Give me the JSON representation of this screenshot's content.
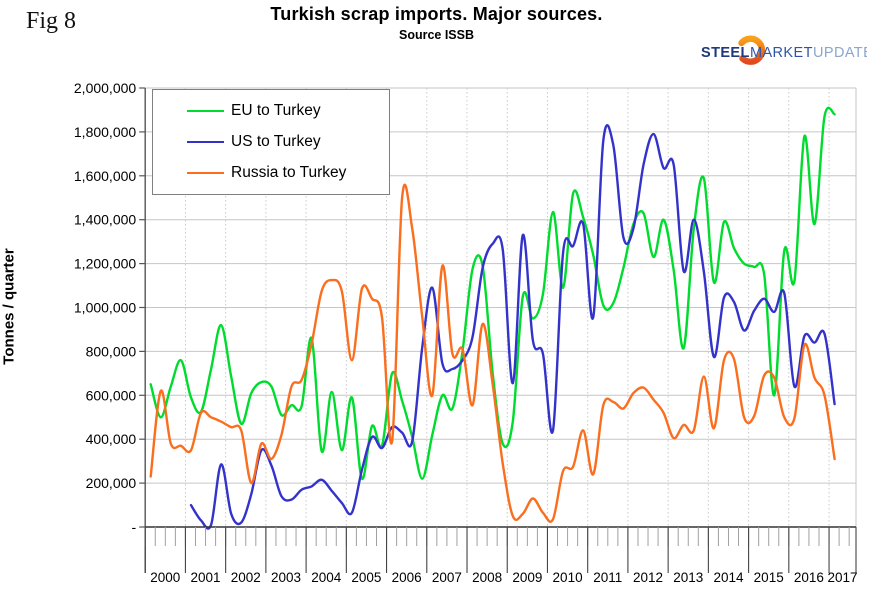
{
  "fig_label": "Fig 8",
  "title": "Turkish scrap imports. Major sources.",
  "subtitle": "Source ISSB",
  "logo": {
    "steel": "STEEL",
    "market": "MARKET",
    "update": "UPDATE",
    "steel_color": "#1d3a7e",
    "market_color": "#2e55a5",
    "update_color": "#8da6cc",
    "swoosh_top_color": "#f9a11b",
    "swoosh_bottom_color": "#e1491f"
  },
  "chart_data": {
    "type": "line",
    "title": "Turkish scrap imports. Major sources.",
    "subtitle": "Source ISSB",
    "xlabel": "",
    "ylabel": "Tonnes / quarter",
    "ylim": [
      0,
      2000000
    ],
    "ytick_step": 200000,
    "y_tick_labels": [
      "-",
      "200,000",
      "400,000",
      "600,000",
      "800,000",
      "1,000,000",
      "1,200,000",
      "1,400,000",
      "1,600,000",
      "1,800,000",
      "2,000,000"
    ],
    "x_years": [
      "2000",
      "2001",
      "2002",
      "2003",
      "2004",
      "2005",
      "2006",
      "2007",
      "2008",
      "2009",
      "2010",
      "2011",
      "2012",
      "2013",
      "2014",
      "2015",
      "2016",
      "2017"
    ],
    "x_resolution": "quarterly",
    "grid": true,
    "legend_position": "top-left",
    "series": [
      {
        "name": "EU to Turkey",
        "color": "#00dc2d",
        "start_quarter": "2000Q1",
        "values": [
          650000,
          500000,
          640000,
          760000,
          590000,
          525000,
          720000,
          920000,
          685000,
          470000,
          610000,
          660000,
          640000,
          510000,
          555000,
          550000,
          860000,
          345000,
          615000,
          350000,
          590000,
          220000,
          460000,
          370000,
          700000,
          575000,
          410000,
          220000,
          420000,
          600000,
          540000,
          800000,
          1175000,
          1190000,
          700000,
          380000,
          480000,
          1050000,
          950000,
          1060000,
          1435000,
          1090000,
          1520000,
          1410000,
          1240000,
          1010000,
          1020000,
          1180000,
          1380000,
          1430000,
          1230000,
          1400000,
          1170000,
          815000,
          1360000,
          1590000,
          1115000,
          1390000,
          1270000,
          1200000,
          1185000,
          1150000,
          600000,
          1260000,
          1120000,
          1780000,
          1380000,
          1870000,
          1880000
        ]
      },
      {
        "name": "US to Turkey",
        "color": "#3333cc",
        "start_quarter": "2001Q1",
        "values": [
          100000,
          30000,
          10000,
          285000,
          60000,
          20000,
          150000,
          350000,
          280000,
          140000,
          125000,
          170000,
          185000,
          215000,
          165000,
          110000,
          65000,
          260000,
          410000,
          360000,
          455000,
          430000,
          390000,
          820000,
          1090000,
          745000,
          720000,
          760000,
          865000,
          1180000,
          1290000,
          1265000,
          655000,
          1330000,
          850000,
          790000,
          440000,
          1250000,
          1280000,
          1380000,
          955000,
          1760000,
          1740000,
          1320000,
          1360000,
          1650000,
          1790000,
          1635000,
          1650000,
          1165000,
          1400000,
          1165000,
          775000,
          1045000,
          1025000,
          895000,
          985000,
          1040000,
          980000,
          1065000,
          640000,
          870000,
          840000,
          880000,
          560000
        ]
      },
      {
        "name": "Russia to Turkey",
        "color": "#fa6e1e",
        "start_quarter": "2000Q1",
        "values": [
          230000,
          620000,
          380000,
          370000,
          350000,
          520000,
          500000,
          480000,
          455000,
          440000,
          200000,
          380000,
          310000,
          420000,
          640000,
          670000,
          835000,
          1075000,
          1125000,
          1075000,
          760000,
          1085000,
          1040000,
          955000,
          390000,
          1500000,
          1360000,
          955000,
          600000,
          1190000,
          790000,
          810000,
          555000,
          925000,
          650000,
          290000,
          50000,
          60000,
          130000,
          65000,
          35000,
          255000,
          275000,
          440000,
          240000,
          555000,
          570000,
          540000,
          610000,
          635000,
          580000,
          520000,
          405000,
          465000,
          440000,
          685000,
          450000,
          760000,
          765000,
          500000,
          505000,
          690000,
          680000,
          500000,
          495000,
          830000,
          680000,
          600000,
          310000
        ]
      }
    ]
  }
}
